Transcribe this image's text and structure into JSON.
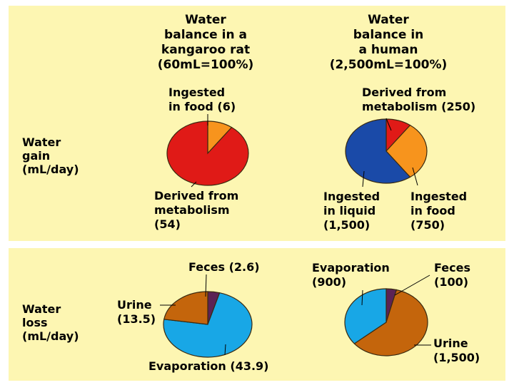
{
  "colors": {
    "background_panel": "#fdf6b2",
    "red": "#e01a17",
    "orange": "#f7941d",
    "blue": "#1a4aa8",
    "light_blue": "#18a7e6",
    "brown": "#c4650c",
    "purple": "#5c2254"
  },
  "columns": {
    "rat_title": "Water\nbalance in a\nkangaroo rat\n(60mL=100%)",
    "human_title": "Water\nbalance in\na human\n(2,500mL=100%)"
  },
  "rows": {
    "gain_label": "Water\ngain\n(mL/day)",
    "loss_label": "Water\nloss\n(mL/day)"
  },
  "chart_data": [
    {
      "type": "pie",
      "slices": [
        {
          "label": "Ingested\nin food (6)",
          "value": 6,
          "color": "#f7941d"
        },
        {
          "label": "Derived from\nmetabolism\n(54)",
          "value": 54,
          "color": "#e01a17"
        }
      ]
    },
    {
      "type": "pie",
      "slices": [
        {
          "label": "Derived from\nmetabolism (250)",
          "value": 250,
          "color": "#e01a17"
        },
        {
          "label": "Ingested\nin food\n(750)",
          "value": 750,
          "color": "#f7941d"
        },
        {
          "label": "Ingested\nin liquid\n(1,500)",
          "value": 1500,
          "color": "#1a4aa8"
        }
      ]
    },
    {
      "type": "pie",
      "slices": [
        {
          "label": "Feces (2.6)",
          "value": 2.6,
          "color": "#5c2254"
        },
        {
          "label": "Evaporation (43.9)",
          "value": 43.9,
          "color": "#18a7e6"
        },
        {
          "label": "Urine\n(13.5)",
          "value": 13.5,
          "color": "#c4650c"
        }
      ]
    },
    {
      "type": "pie",
      "slices": [
        {
          "label": "Feces\n(100)",
          "value": 100,
          "color": "#5c2254"
        },
        {
          "label": "Urine\n(1,500)",
          "value": 1500,
          "color": "#c4650c"
        },
        {
          "label": "Evaporation\n(900)",
          "value": 900,
          "color": "#18a7e6"
        }
      ]
    }
  ]
}
